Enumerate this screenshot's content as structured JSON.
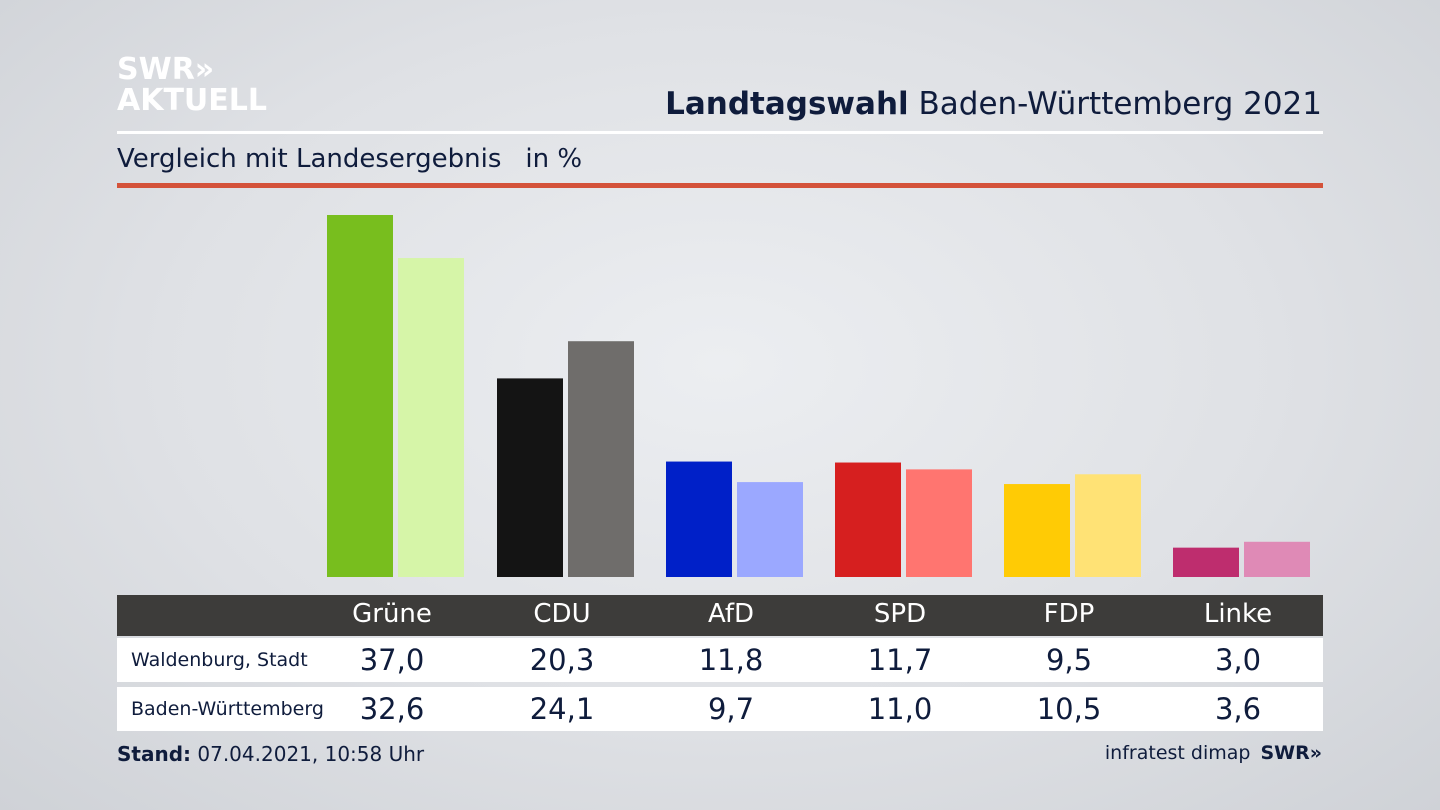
{
  "logo": {
    "line1": "SWR»",
    "line2": "AKTUELL"
  },
  "header": {
    "title_bold": "Landtagswahl",
    "title_rest": "Baden-Württemberg 2021",
    "subtitle": "Vergleich mit Landesergebnis",
    "unit": "in %"
  },
  "chart_data": {
    "type": "bar",
    "title": "Landtagswahl Baden-Württemberg 2021",
    "subtitle": "Vergleich mit Landesergebnis in %",
    "categories": [
      "Grüne",
      "CDU",
      "AfD",
      "SPD",
      "FDP",
      "Linke"
    ],
    "series": [
      {
        "name": "Waldenburg, Stadt",
        "values": [
          "37,0",
          "20,3",
          "11,8",
          "11,7",
          "9,5",
          "3,0"
        ],
        "colors": [
          "#78be1e",
          "#141414",
          "#0020c8",
          "#d61f1f",
          "#ffcb05",
          "#be2d6e"
        ]
      },
      {
        "name": "Baden-Württemberg",
        "values": [
          "32,6",
          "24,1",
          "9,7",
          "11,0",
          "10,5",
          "3,6"
        ],
        "colors": [
          "#d6f5a8",
          "#6f6d6b",
          "#9ba8ff",
          "#ff7570",
          "#ffe275",
          "#df8ab6"
        ]
      }
    ],
    "ylim": [
      0,
      37
    ]
  },
  "footer": {
    "stand_label": "Stand:",
    "stand_value": "07.04.2021, 10:58 Uhr",
    "source": "infratest dimap",
    "brand": "SWR»"
  }
}
